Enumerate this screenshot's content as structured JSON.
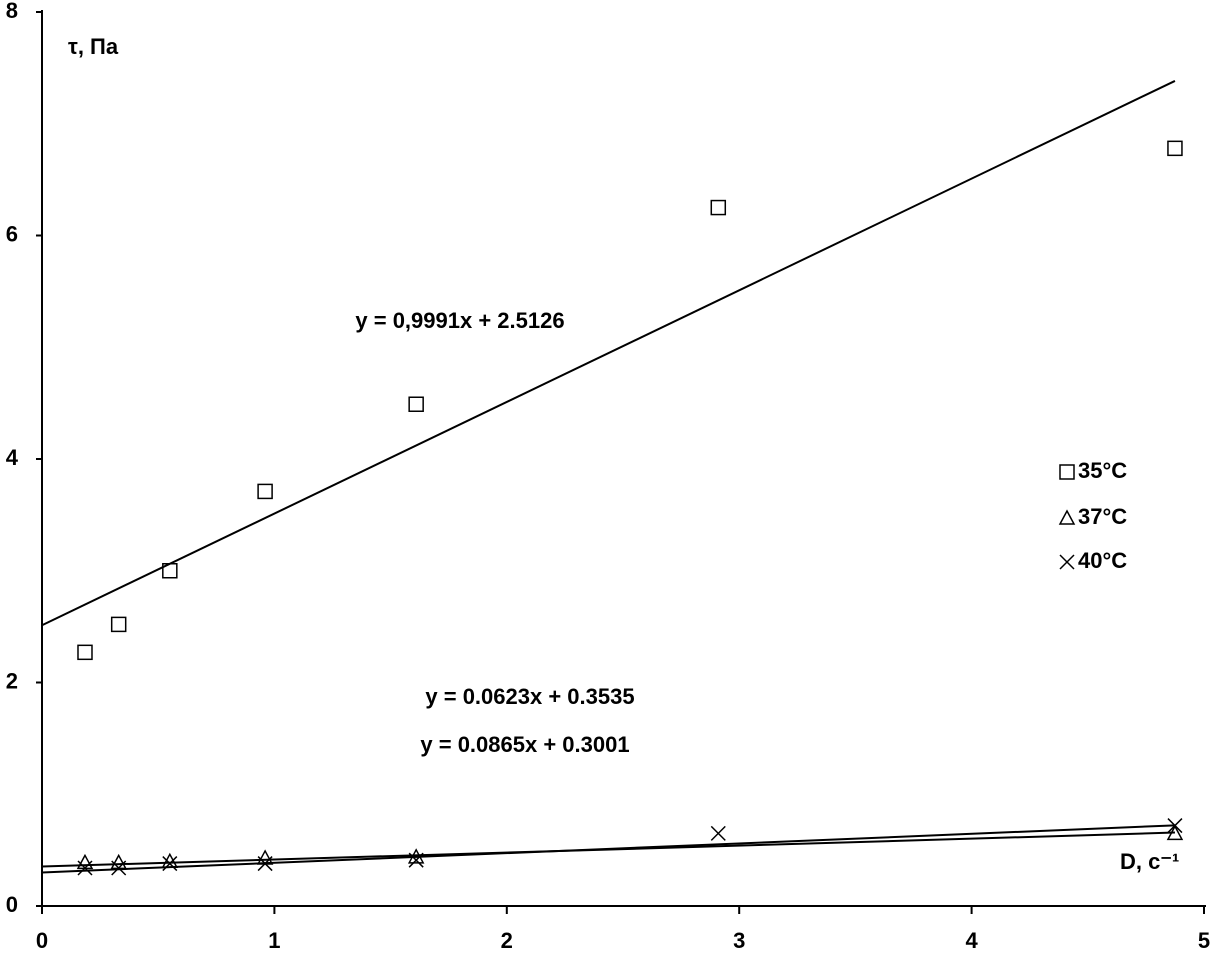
{
  "chart_data": {
    "type": "scatter",
    "y_label": "τ, Па",
    "x_label": "D, с⁻¹",
    "xlim": [
      0,
      5
    ],
    "xticks": [
      0,
      1,
      2,
      3,
      4,
      5
    ],
    "ylim": [
      0,
      8
    ],
    "yticks": [
      0,
      2,
      4,
      6,
      8
    ],
    "legend": "right",
    "series": [
      {
        "name": "35°C",
        "marker": "square",
        "color": "#000000",
        "x": [
          0.185,
          0.33,
          0.55,
          0.96,
          1.61,
          2.91,
          4.875
        ],
        "values": [
          2.27,
          2.52,
          3.0,
          3.71,
          4.49,
          6.25,
          6.78
        ],
        "trendline": {
          "slope": 0.9991,
          "intercept": 2.5126,
          "label": "y = 0,9991x + 2.5126"
        }
      },
      {
        "name": "37°C",
        "marker": "triangle",
        "color": "#000000",
        "x": [
          0.185,
          0.33,
          0.55,
          0.96,
          1.61,
          4.875
        ],
        "values": [
          0.39,
          0.39,
          0.4,
          0.43,
          0.44,
          0.65
        ],
        "trendline": {
          "slope": 0.0623,
          "intercept": 0.3535,
          "label": "y = 0.0623x + 0.3535"
        }
      },
      {
        "name": "40°C",
        "marker": "cross",
        "color": "#000000",
        "x": [
          0.185,
          0.33,
          0.55,
          0.96,
          1.61,
          2.91,
          4.875
        ],
        "values": [
          0.34,
          0.34,
          0.38,
          0.38,
          0.41,
          0.65,
          0.72
        ],
        "trendline": {
          "slope": 0.0865,
          "intercept": 0.3001,
          "label": "y = 0.0865x + 0.3001"
        }
      }
    ]
  }
}
